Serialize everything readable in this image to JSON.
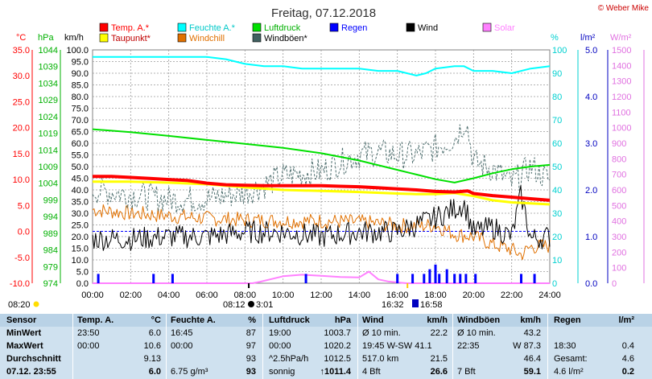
{
  "chart_data": {
    "type": "line",
    "title": "Freitag, 07.12.2018",
    "copyright": "© Weber Mike",
    "x_ticks": [
      "00:00",
      "02:00",
      "04:00",
      "06:00",
      "08:00",
      "10:00",
      "12:00",
      "14:00",
      "16:00",
      "18:00",
      "20:00",
      "22:00",
      "24:00"
    ],
    "axes": {
      "temp": {
        "unit": "°C",
        "color": "#ff0000",
        "ticks": [
          "35.0",
          "30.0",
          "25.0",
          "20.0",
          "15.0",
          "10.0",
          "5.0",
          "0.0",
          "-5.0",
          "-10.0"
        ],
        "range": [
          -10,
          35
        ]
      },
      "pressure": {
        "unit": "hPa",
        "color": "#00c000",
        "ticks": [
          "1044",
          "1039",
          "1034",
          "1029",
          "1024",
          "1019",
          "1014",
          "1009",
          "1004",
          "999",
          "994",
          "989",
          "984",
          "979",
          "974"
        ],
        "range": [
          974,
          1044
        ]
      },
      "wind": {
        "unit": "km/h",
        "color": "#000000",
        "ticks": [
          "100.0",
          "95.0",
          "90.0",
          "85.0",
          "80.0",
          "75.0",
          "70.0",
          "65.0",
          "60.0",
          "55.0",
          "50.0",
          "45.0",
          "40.0",
          "35.0",
          "30.0",
          "25.0",
          "20.0",
          "15.0",
          "10.0",
          "5.0",
          "0.0"
        ],
        "range": [
          0,
          100
        ]
      },
      "humidity": {
        "unit": "%",
        "color": "#00d0d0",
        "ticks": [
          "100",
          "90",
          "80",
          "70",
          "60",
          "50",
          "40",
          "30",
          "20",
          "10",
          "0"
        ],
        "range": [
          0,
          100
        ]
      },
      "rain": {
        "unit": "l/m²",
        "color": "#0000c0",
        "ticks": [
          "5.0",
          "4.0",
          "3.0",
          "2.0",
          "1.0",
          "0.0"
        ],
        "range": [
          0,
          5
        ]
      },
      "solar": {
        "unit": "W/m²",
        "color": "#e070e0",
        "ticks": [
          "1500",
          "1400",
          "1300",
          "1200",
          "1100",
          "1000",
          "900",
          "800",
          "700",
          "600",
          "500",
          "400",
          "300",
          "200",
          "100",
          "0"
        ],
        "range": [
          0,
          1500
        ]
      }
    },
    "legend": [
      {
        "name": "Temp. A.*",
        "color": "#ff0000"
      },
      {
        "name": "Feuchte A.*",
        "color": "#00ffff"
      },
      {
        "name": "Luftdruck",
        "color": "#00e000"
      },
      {
        "name": "Regen",
        "color": "#0000ff"
      },
      {
        "name": "Wind",
        "color": "#000000"
      },
      {
        "name": "Solar",
        "color": "#ff80ff"
      },
      {
        "name": "Taupunkt*",
        "color": "#ffff00"
      },
      {
        "name": "Windchill",
        "color": "#e07000"
      },
      {
        "name": "Windböen*",
        "color": "#406060"
      }
    ],
    "series": [
      {
        "name": "Temp. A.*",
        "axis": "temp",
        "color": "#ff0000",
        "width": 4,
        "x": [
          0,
          1,
          2,
          3,
          4,
          5,
          6,
          7,
          8,
          9,
          10,
          11,
          12,
          13,
          14,
          15,
          16,
          17,
          18,
          19,
          19.7,
          20,
          21,
          22,
          23,
          24
        ],
        "y": [
          10.6,
          10.6,
          10.4,
          10.2,
          10.0,
          9.8,
          9.3,
          9.0,
          8.9,
          8.8,
          8.8,
          8.8,
          8.8,
          8.7,
          8.6,
          8.4,
          8.2,
          8.0,
          7.7,
          7.6,
          7.8,
          7.3,
          6.9,
          6.6,
          6.3,
          6.0
        ]
      },
      {
        "name": "Taupunkt*",
        "axis": "temp",
        "color": "#ffff00",
        "width": 3,
        "x": [
          0,
          2,
          4,
          6,
          8,
          10,
          12,
          14,
          16,
          17,
          18,
          19,
          20,
          21,
          22,
          23,
          24
        ],
        "y": [
          9.6,
          9.6,
          9.4,
          9.1,
          8.5,
          8.0,
          7.8,
          7.6,
          7.3,
          7.2,
          7.2,
          7.4,
          6.8,
          6.0,
          5.6,
          5.4,
          5.2
        ]
      },
      {
        "name": "Feuchte A.*",
        "axis": "humidity",
        "color": "#00ffff",
        "width": 2,
        "x": [
          0,
          1,
          2,
          3,
          4,
          5,
          6,
          7,
          8,
          9,
          10,
          11,
          12,
          13,
          14,
          15,
          16,
          16.5,
          17,
          17.5,
          18,
          19,
          19.5,
          20,
          21,
          22,
          23,
          24
        ],
        "y": [
          97,
          97,
          97,
          97,
          97,
          97,
          97,
          96,
          94,
          93,
          93,
          92,
          92,
          92,
          92,
          91,
          91,
          90,
          89,
          90,
          92,
          93,
          93,
          91,
          91,
          90,
          92,
          93
        ]
      },
      {
        "name": "Luftdruck",
        "axis": "pressure",
        "color": "#00e000",
        "width": 2,
        "x": [
          0,
          2,
          4,
          6,
          8,
          10,
          12,
          14,
          16,
          17,
          18,
          19,
          20,
          21,
          22,
          23,
          24
        ],
        "y": [
          1020.2,
          1019.3,
          1018.2,
          1017.0,
          1015.8,
          1014.6,
          1013.0,
          1010.8,
          1008.0,
          1006.6,
          1005.2,
          1004.2,
          1005.5,
          1007.0,
          1008.2,
          1009.0,
          1009.5
        ]
      },
      {
        "name": "Wind",
        "axis": "wind",
        "color": "#000000",
        "width": 1,
        "noisy": true,
        "x": [
          0,
          2,
          4,
          6,
          8,
          10,
          12,
          14,
          16,
          17,
          18,
          19,
          19.5,
          20,
          21,
          22,
          22.5,
          23,
          24
        ],
        "y": [
          19,
          19,
          20,
          20,
          22,
          22,
          20,
          22,
          22,
          25,
          28,
          32,
          34,
          22,
          24,
          20,
          38,
          19,
          20
        ]
      },
      {
        "name": "Windchill",
        "axis": "temp",
        "color": "#e07000",
        "width": 1,
        "noisy": true,
        "x": [
          0,
          2,
          4,
          6,
          8,
          10,
          12,
          14,
          16,
          17,
          18,
          19,
          20,
          21,
          22,
          22.5,
          23,
          24
        ],
        "y": [
          4.2,
          3.5,
          3.0,
          2.5,
          2.2,
          2.0,
          2.0,
          1.8,
          1.2,
          1.0,
          1.2,
          -0.5,
          -1.0,
          -2.5,
          -3.5,
          -4.5,
          -3.0,
          -2.8
        ]
      },
      {
        "name": "Windböen*",
        "axis": "wind",
        "color": "#507070",
        "width": 1,
        "dashed": true,
        "noisy": true,
        "x": [
          0,
          2,
          4,
          6,
          8,
          9,
          10,
          11,
          12,
          13,
          14,
          15,
          16,
          17,
          18,
          19,
          19.6,
          20,
          21,
          22,
          23,
          24
        ],
        "y": [
          40,
          38,
          36,
          36,
          39,
          42,
          46,
          47,
          48,
          52,
          55,
          56,
          55,
          55,
          58,
          62,
          70,
          52,
          49,
          43,
          50,
          44
        ]
      },
      {
        "name": "Solar",
        "axis": "solar",
        "color": "#ff80ff",
        "width": 2,
        "x": [
          0,
          8.4,
          8.8,
          9.5,
          10,
          11,
          12,
          13,
          14,
          14.5,
          15,
          15.5,
          16,
          16.5,
          24
        ],
        "y": [
          0,
          0,
          10,
          30,
          45,
          55,
          48,
          40,
          38,
          75,
          25,
          12,
          5,
          0,
          0
        ]
      }
    ],
    "rain_bars": {
      "axis": "rain",
      "color": "#0000ff",
      "x": [
        0.3,
        3.2,
        4.2,
        11.2,
        16.0,
        16.8,
        17.4,
        17.7,
        18.0,
        18.2,
        18.6,
        19.0,
        19.3,
        19.6,
        20.1,
        22.5,
        23.2
      ],
      "y": [
        0.2,
        0.2,
        0.2,
        0.2,
        0.2,
        0.2,
        0.2,
        0.3,
        0.4,
        0.2,
        0.3,
        0.2,
        0.2,
        0.2,
        0.2,
        0.2,
        0.2
      ]
    },
    "sun_bar_markers": [
      "08:20",
      "08:12",
      "16:32"
    ],
    "sun_labels": {
      "left": "08:20",
      "sunrise": "08:12",
      "sunrise_end": "3:01",
      "sunset": "16:32",
      "sunset_end": "16:58"
    }
  },
  "table": {
    "headers": [
      "Sensor",
      "Temp. A.",
      "°C",
      "Feuchte A.",
      "%",
      "Luftdruck",
      "hPa",
      "Wind",
      "km/h",
      "Windböen",
      "km/h",
      "Regen",
      "l/m²"
    ],
    "rows": [
      {
        "label": "MinWert",
        "cells": [
          "23:50",
          "6.0",
          "16:45",
          "87",
          "19:00",
          "1003.7",
          "Ø 10 min.",
          "22.2",
          "Ø 10 min.",
          "43.2",
          "",
          ""
        ]
      },
      {
        "label": "MaxWert",
        "cells": [
          "00:00",
          "10.6",
          "00:00",
          "97",
          "00:00",
          "1020.2",
          "19:45    W-SW 41.1",
          "",
          "22:35",
          "W 87.3",
          "18:30",
          "0.4"
        ]
      },
      {
        "label": "Durchschnitt",
        "cells": [
          "",
          "9.13",
          "",
          "93",
          "^2.5hPa/h",
          "1012.5",
          "517.0 km",
          "21.5",
          "",
          "46.4",
          "Gesamt:",
          "4.6"
        ]
      },
      {
        "label": "07.12. 23:55",
        "cells": [
          "",
          "6.0",
          "6.75 g/m³",
          "93",
          "sonnig",
          "↑1011.4",
          "4 Bft",
          "26.6",
          "7 Bft",
          "59.1",
          "4.6 l/m²",
          "0.2"
        ]
      }
    ]
  }
}
